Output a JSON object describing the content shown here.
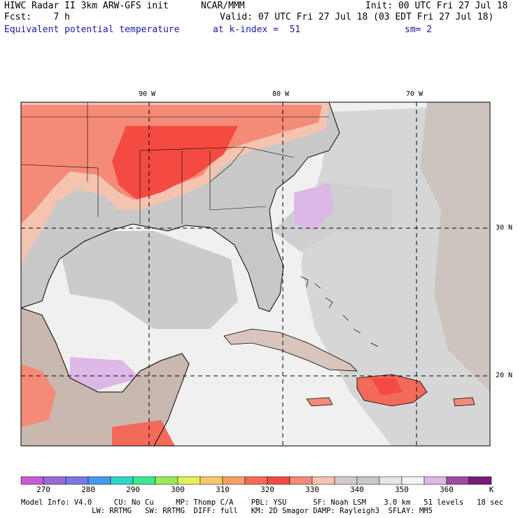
{
  "header": {
    "line1_left": "HIWC Radar II 3km ARW-GFS init",
    "line1_mid": "NCAR/MMM",
    "line1_right": "Init: 00 UTC Fri 27 Jul 18",
    "line2_left": "Fcst:    7 h",
    "line2_right": "Valid: 07 UTC Fri 27 Jul 18 (03 EDT Fri 27 Jul 18)",
    "line3_left": "Equivalent potential temperature",
    "line3_mid": "at k-index =  51",
    "line3_right": "sm= 2"
  },
  "grid": {
    "lon_labels": [
      "90 W",
      "80 W",
      "70 W"
    ],
    "lat_labels": [
      "30 N",
      "20 N"
    ]
  },
  "colorbar": {
    "unit": "K",
    "labels": [
      "270",
      "280",
      "290",
      "300",
      "310",
      "320",
      "330",
      "340",
      "350",
      "360"
    ],
    "colors": [
      "#c85ad2",
      "#9a6ad6",
      "#7a78e6",
      "#4a98ee",
      "#2fd6c8",
      "#3ae890",
      "#9ae85a",
      "#e6f05a",
      "#f6c86a",
      "#f8a062",
      "#f46a5a",
      "#f44a42",
      "#f48a78",
      "#f4c4b0",
      "#d2cac6",
      "#c8c8c8",
      "#e6e6e6",
      "#f4f4f4",
      "#dcb8e6",
      "#a04aa0",
      "#7a1a7a"
    ],
    "min": 265,
    "max": 370
  },
  "footer": {
    "line1": "Model Info: V4.0     CU: No Cu     MP: Thomp C/A    PBL: YSU      SF: Noah LSM    3.0 km   51 levels   18 sec",
    "line2": "                LW: RRTMG   SW: RRTMG  DIFF: full   KM: 2D Smagor DAMP: Rayleigh3  SFLAY: MM5"
  }
}
